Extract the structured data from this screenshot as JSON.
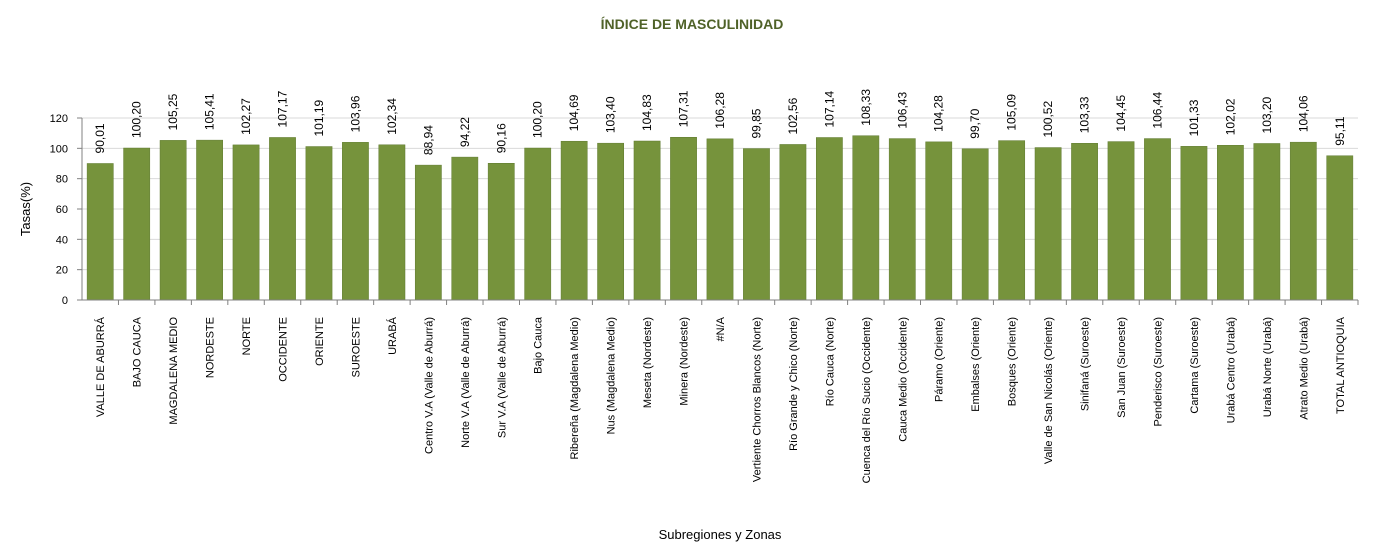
{
  "chart_data": {
    "type": "bar",
    "title": "ÍNDICE DE MASCULINIDAD",
    "xlabel": "Subregiones y Zonas",
    "ylabel": "Tasas(%)",
    "ylim": [
      0,
      120
    ],
    "yticks": [
      "0",
      "20",
      "40",
      "60",
      "80",
      "100",
      "120"
    ],
    "grid": true,
    "legend": "none",
    "colors": {
      "bar": "#76933C",
      "bar_edge": "#5F7A30",
      "title": "#4F6228",
      "grid": "#D9D9D9",
      "axis": "#808080"
    },
    "categories": [
      "VALLE DE ABURRÁ",
      "BAJO CAUCA",
      "MAGDALENA MEDIO",
      "NORDESTE",
      "NORTE",
      "OCCIDENTE",
      "ORIENTE",
      "SUROESTE",
      "URABÁ",
      "Centro V.A (Valle de Aburrá)",
      "Norte V.A (Valle de Aburrá)",
      "Sur V.A (Valle de Aburrá)",
      "Bajo Cauca",
      "Ribereña  (Magdalena Medio)",
      "Nus  (Magdalena Medio)",
      "Meseta  (Nordeste)",
      "Minera  (Nordeste)",
      "#N/A",
      "Vertiente Chorros Blancos  (Norte)",
      "Río Grande y Chico  (Norte)",
      "Río Cauca  (Norte)",
      "Cuenca del Río Sucio  (Occidente)",
      "Cauca Medio  (Occidente)",
      "Páramo  (Oriente)",
      "Embalses  (Oriente)",
      "Bosques  (Oriente)",
      "Valle de San Nicolás  (Oriente)",
      "Sinifaná  (Suroeste)",
      "San Juan  (Suroeste)",
      "Penderisco  (Suroeste)",
      "Cartama  (Suroeste)",
      "Urabá Centro  (Urabá)",
      "Urabá Norte  (Urabá)",
      "Atrato Medio  (Urabá)",
      "TOTAL ANTIOQUIA"
    ],
    "values": [
      90.01,
      100.2,
      105.25,
      105.41,
      102.27,
      107.17,
      101.19,
      103.96,
      102.34,
      88.94,
      94.22,
      90.16,
      100.2,
      104.69,
      103.4,
      104.83,
      107.31,
      106.28,
      99.85,
      102.56,
      107.14,
      108.33,
      106.43,
      104.28,
      99.7,
      105.09,
      100.52,
      103.33,
      104.45,
      106.44,
      101.33,
      102.02,
      103.2,
      104.06,
      95.11
    ],
    "data_labels": [
      "90,01",
      "100,20",
      "105,25",
      "105,41",
      "102,27",
      "107,17",
      "101,19",
      "103,96",
      "102,34",
      "88,94",
      "94,22",
      "90,16",
      "100,20",
      "104,69",
      "103,40",
      "104,83",
      "107,31",
      "106,28",
      "99,85",
      "102,56",
      "107,14",
      "108,33",
      "106,43",
      "104,28",
      "99,70",
      "105,09",
      "100,52",
      "103,33",
      "104,45",
      "106,44",
      "101,33",
      "102,02",
      "103,20",
      "104,06",
      "95,11"
    ]
  }
}
